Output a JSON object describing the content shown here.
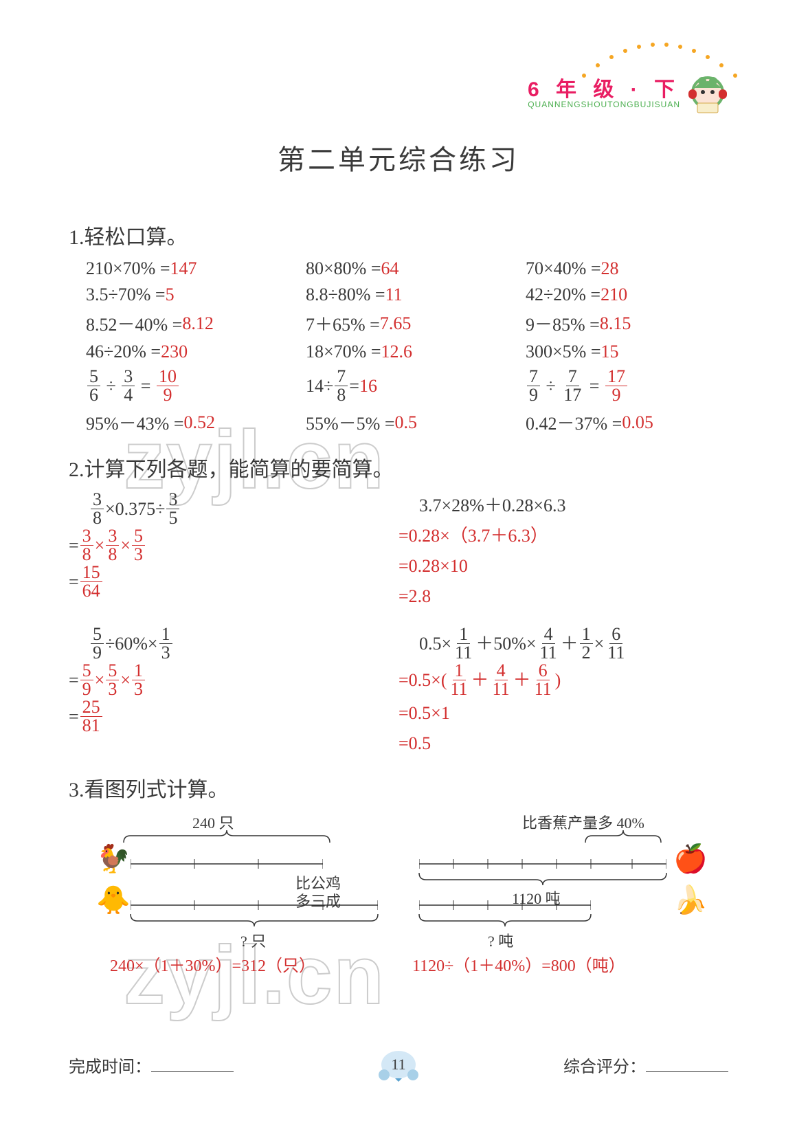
{
  "header": {
    "grade_label": "6 年 级 · 下",
    "pinyin": "QUANNENGSHOUTONGBUJISUAN",
    "dot_color": "#f5a623",
    "grade_color": "#e91e63",
    "pinyin_color": "#4caf50"
  },
  "title": "第二单元综合练习",
  "section1": {
    "heading": "1.轻松口算。",
    "rows": [
      [
        {
          "expr": "210×70% =",
          "ans": "147"
        },
        {
          "expr": "80×80% =",
          "ans": "64"
        },
        {
          "expr": "70×40% =",
          "ans": "28"
        }
      ],
      [
        {
          "expr": "3.5÷70% =",
          "ans": "5"
        },
        {
          "expr": "8.8÷80% =",
          "ans": "11"
        },
        {
          "expr": "42÷20% =",
          "ans": "210"
        }
      ],
      [
        {
          "expr": "8.52－40% =",
          "ans": "8.12"
        },
        {
          "expr": "7＋65% =",
          "ans": "7.65"
        },
        {
          "expr": "9－85% =",
          "ans": "8.15"
        }
      ],
      [
        {
          "expr": "46÷20% =",
          "ans": "230"
        },
        {
          "expr": "18×70% =",
          "ans": "12.6"
        },
        {
          "expr": "300×5% =",
          "ans": "15"
        }
      ]
    ],
    "frac_row": [
      {
        "f1": [
          "5",
          "6"
        ],
        "op": "÷",
        "f2": [
          "3",
          "4"
        ],
        "ans": [
          "10",
          "9"
        ]
      },
      {
        "plain_left": "14÷",
        "f1": [
          "7",
          "8"
        ],
        "plain_right": " =",
        "ans_plain": "16"
      },
      {
        "f1": [
          "7",
          "9"
        ],
        "op": "÷",
        "f2": [
          "7",
          "17"
        ],
        "ans": [
          "17",
          "9"
        ]
      }
    ],
    "last_row": [
      {
        "expr": "95%－43% =",
        "ans": "0.52"
      },
      {
        "expr": "55%－5% =",
        "ans": "0.5"
      },
      {
        "expr": "0.42－37% =",
        "ans": "0.05"
      }
    ]
  },
  "section2": {
    "heading": "2.计算下列各题，能简算的要简算。",
    "problems": [
      {
        "left": {
          "q_parts": [
            [
              "frac",
              "3",
              "8"
            ],
            [
              "txt",
              "×0.375÷"
            ],
            [
              "frac",
              "3",
              "5"
            ]
          ],
          "steps": [
            [
              [
                "txt",
                "= "
              ],
              [
                "fracA",
                "3",
                "8"
              ],
              [
                "txtA",
                "×"
              ],
              [
                "fracA",
                "3",
                "8"
              ],
              [
                "txtA",
                "×"
              ],
              [
                "fracA",
                "5",
                "3"
              ]
            ],
            [
              [
                "txt",
                "= "
              ],
              [
                "fracA",
                "15",
                "64"
              ]
            ]
          ]
        },
        "right": {
          "q_parts": [
            [
              "txt",
              "3.7×28%＋0.28×6.3"
            ]
          ],
          "steps": [
            [
              [
                "txtA",
                "=0.28×（3.7＋6.3）"
              ]
            ],
            [
              [
                "txtA",
                "=0.28×10"
              ]
            ],
            [
              [
                "txtA",
                "=2.8"
              ]
            ]
          ]
        }
      },
      {
        "left": {
          "q_parts": [
            [
              "frac",
              "5",
              "9"
            ],
            [
              "txt",
              "÷60%×"
            ],
            [
              "frac",
              "1",
              "3"
            ]
          ],
          "steps": [
            [
              [
                "txt",
                "= "
              ],
              [
                "fracA",
                "5",
                "9"
              ],
              [
                "txtA",
                "×"
              ],
              [
                "fracA",
                "5",
                "3"
              ],
              [
                "txtA",
                "×"
              ],
              [
                "fracA",
                "1",
                "3"
              ]
            ],
            [
              [
                "txt",
                "= "
              ],
              [
                "fracA",
                "25",
                "81"
              ]
            ]
          ]
        },
        "right": {
          "q_parts": [
            [
              "txt",
              "0.5×"
            ],
            [
              "frac",
              "1",
              "11"
            ],
            [
              "txt",
              "＋50%×"
            ],
            [
              "frac",
              "4",
              "11"
            ],
            [
              "txt",
              "＋"
            ],
            [
              "frac",
              "1",
              "2"
            ],
            [
              "txt",
              "×"
            ],
            [
              "frac",
              "6",
              "11"
            ]
          ],
          "steps": [
            [
              [
                "txtA",
                "=0.5×("
              ],
              [
                "fracA",
                "1",
                "11"
              ],
              [
                "txtA",
                "＋"
              ],
              [
                "fracA",
                "4",
                "11"
              ],
              [
                "txtA",
                "＋"
              ],
              [
                "fracA",
                "6",
                "11"
              ],
              [
                "txtA",
                ")"
              ]
            ],
            [
              [
                "txtA",
                "=0.5×1"
              ]
            ],
            [
              [
                "txtA",
                "=0.5"
              ]
            ]
          ]
        }
      }
    ]
  },
  "section3": {
    "heading": "3.看图列式计算。",
    "left": {
      "top_label": "240 只",
      "mid_label": "比公鸡",
      "mid_label2": "多三成",
      "q_label": "? 只",
      "answer": "240×（1＋30%）=312（只）"
    },
    "right": {
      "top_label": "比香蕉产量多 40%",
      "mid_label": "1120 吨",
      "q_label": "? 吨",
      "answer": "1120÷（1＋40%）=800（吨）"
    }
  },
  "footer": {
    "time_label": "完成时间：",
    "score_label": "综合评分：",
    "page": "11"
  },
  "watermark": "zyjl.cn",
  "colors": {
    "text": "#3a3a3a",
    "answer": "#d32f2f",
    "background": "#ffffff"
  }
}
